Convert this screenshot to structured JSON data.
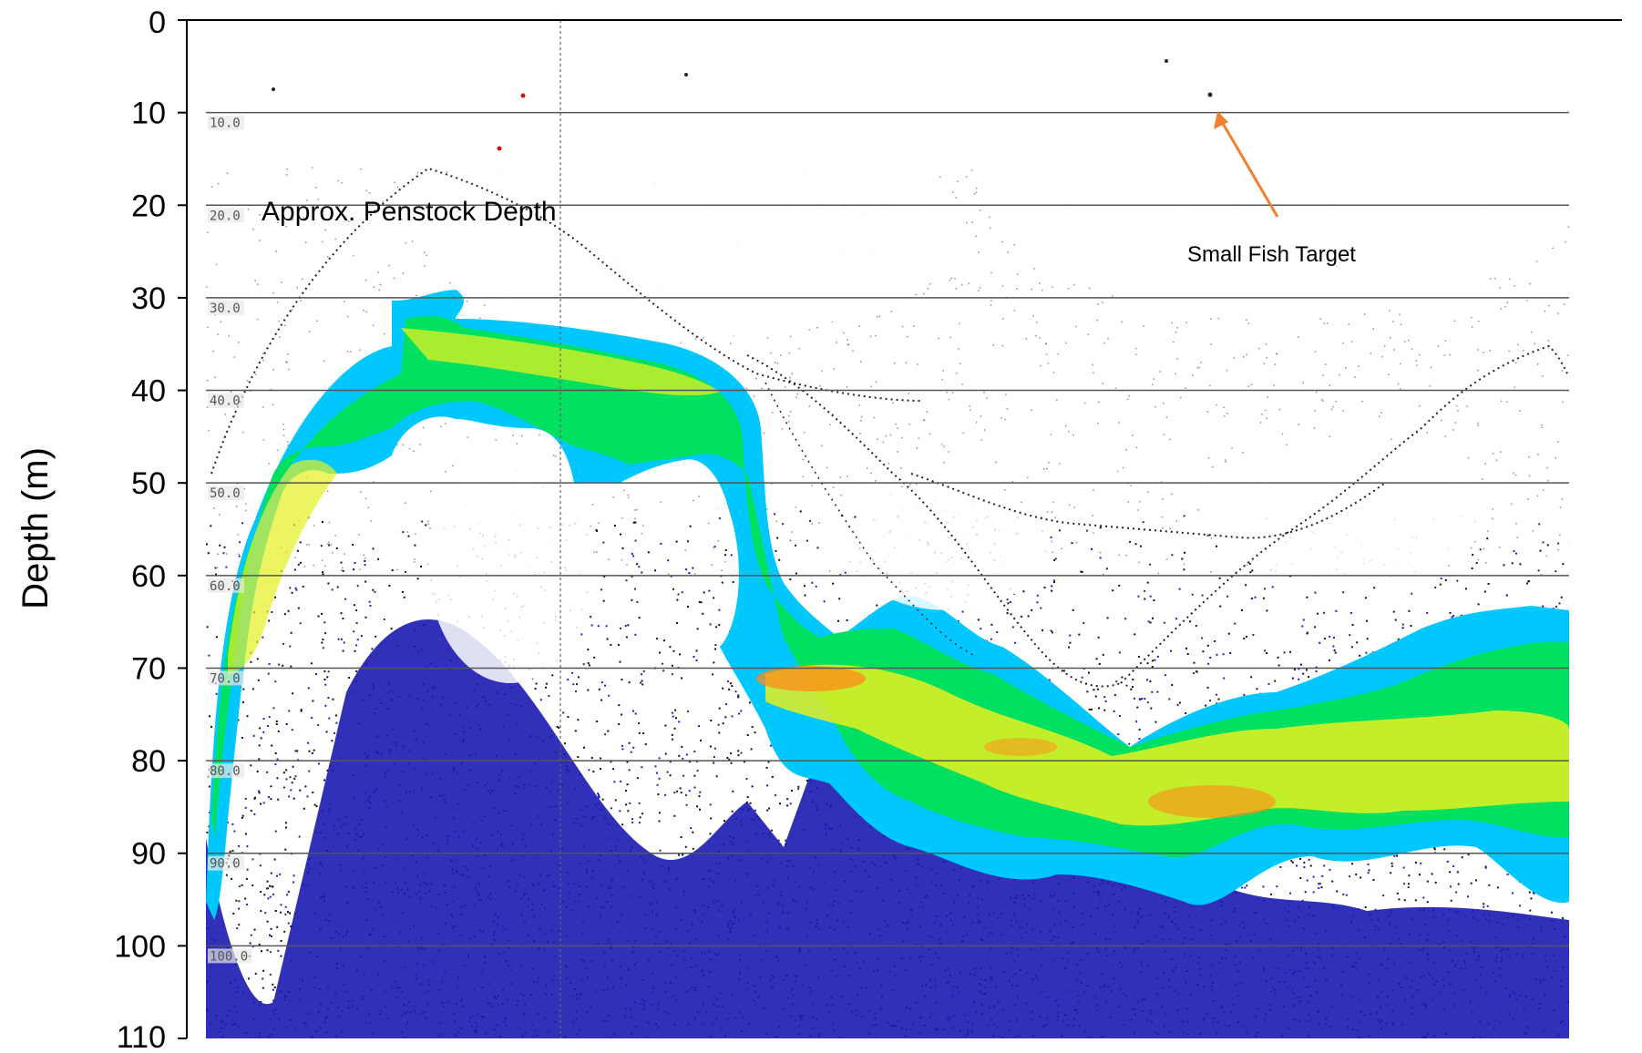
{
  "chart_data": {
    "type": "heatmap",
    "title": "",
    "xlabel": "",
    "ylabel": "Depth (m)",
    "y_axis": {
      "range": [
        0,
        110
      ],
      "inverted": true,
      "ticks": [
        0,
        10,
        20,
        30,
        40,
        50,
        60,
        70,
        80,
        90,
        100,
        110
      ]
    },
    "inner_depth_labels": [
      "10.0",
      "20.0",
      "30.0",
      "40.0",
      "50.0",
      "60.0",
      "70.0",
      "80.0",
      "90.0",
      "100.0"
    ],
    "gridlines_at": [
      10,
      20,
      30,
      40,
      50,
      60,
      70,
      80,
      90,
      100
    ],
    "colors": {
      "weak": "#1a1ab0",
      "medium": "#00c8ff",
      "strong": "#00e060",
      "stronger": "#e6f020",
      "strongest": "#ff8a1a",
      "arrow": "#f08030"
    },
    "annotations": [
      {
        "id": "penstock",
        "text": "Approx. Penstock Depth",
        "depth": 21
      },
      {
        "id": "fish",
        "text": "Small Fish Target",
        "depth": 10
      }
    ]
  }
}
